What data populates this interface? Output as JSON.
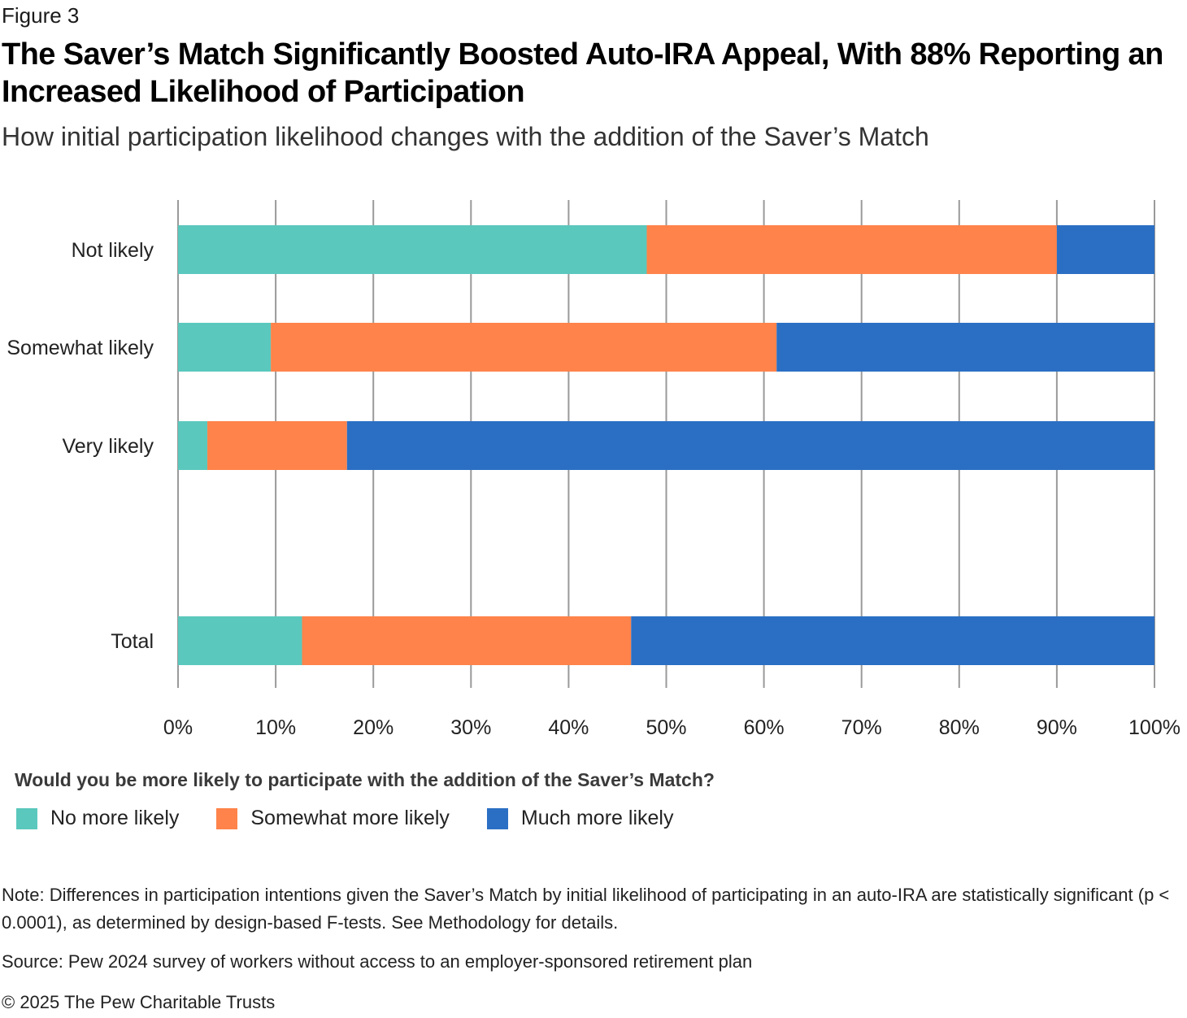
{
  "figure_label": "Figure 3",
  "title": "The Saver’s Match Significantly Boosted Auto-IRA Appeal, With 88% Reporting an Increased Likelihood of Participation",
  "subtitle": "How initial participation likelihood changes with the addition of the Saver’s Match",
  "legend_title": "Would you be more likely to participate with the addition of the Saver’s Match?",
  "note": "Note: Differences in participation intentions given the Saver’s Match by initial likelihood of participating in an auto-IRA are statistically significant (p < 0.0001), as determined by design-based F-tests. See Methodology for details.",
  "source": "Source: Pew 2024 survey of workers without access to an employer-sponsored retirement plan",
  "copyright": "© 2025 The Pew Charitable Trusts",
  "colors": {
    "no_more": "#5bc8bd",
    "somewhat_more": "#ff834a",
    "much_more": "#2b6fc4",
    "gridline": "#9a9a9a"
  },
  "chart_data": {
    "type": "bar",
    "orientation": "horizontal",
    "stacked": true,
    "categories": [
      "Not likely",
      "Somewhat likely",
      "Very likely",
      "Total"
    ],
    "series": [
      {
        "name": "No more likely",
        "color": "#5bc8bd",
        "values": [
          48,
          9.5,
          3,
          12.7
        ]
      },
      {
        "name": "Somewhat more likely",
        "color": "#ff834a",
        "values": [
          42,
          51.8,
          14.3,
          33.7
        ]
      },
      {
        "name": "Much more likely",
        "color": "#2b6fc4",
        "values": [
          10,
          38.7,
          82.7,
          53.6
        ]
      }
    ],
    "xlim": [
      0,
      100
    ],
    "xticks": [
      "0%",
      "10%",
      "20%",
      "30%",
      "40%",
      "50%",
      "60%",
      "70%",
      "80%",
      "90%",
      "100%"
    ],
    "grid": true,
    "legend": "bottom-left"
  }
}
